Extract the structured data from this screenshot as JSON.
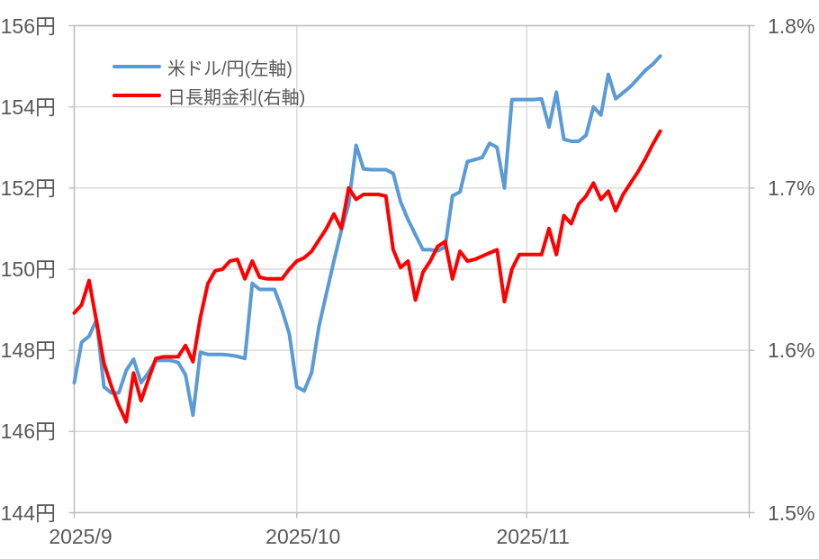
{
  "chart_data": {
    "type": "line",
    "title": "",
    "x": [
      "9/1",
      "9/2",
      "9/3",
      "9/4",
      "9/5",
      "9/6",
      "9/7",
      "9/8",
      "9/9",
      "9/10",
      "9/11",
      "9/12",
      "9/13",
      "9/14",
      "9/15",
      "9/16",
      "9/17",
      "9/18",
      "9/19",
      "9/20",
      "9/21",
      "9/22",
      "9/23",
      "9/24",
      "9/25",
      "9/26",
      "9/27",
      "9/28",
      "9/29",
      "9/30",
      "10/1",
      "10/2",
      "10/3",
      "10/4",
      "10/5",
      "10/6",
      "10/7",
      "10/8",
      "10/9",
      "10/10",
      "10/11",
      "10/12",
      "10/13",
      "10/14",
      "10/15",
      "10/16",
      "10/17",
      "10/18",
      "10/19",
      "10/20",
      "10/21",
      "10/22",
      "10/23",
      "10/24",
      "10/25",
      "10/26",
      "10/27",
      "10/28",
      "10/29",
      "10/30",
      "10/31",
      "11/1",
      "11/2",
      "11/3",
      "11/4",
      "11/5",
      "11/6",
      "11/7",
      "11/8",
      "11/9",
      "11/10",
      "11/11",
      "11/12",
      "11/13",
      "11/14",
      "11/15",
      "11/16",
      "11/17",
      "11/18",
      "11/19"
    ],
    "series": [
      {
        "name": "米ドル/円(左軸)",
        "axis": "left",
        "color": "#5B9BD5",
        "values": [
          147.2,
          148.2,
          148.35,
          148.75,
          147.1,
          146.95,
          146.95,
          147.5,
          147.78,
          147.2,
          147.45,
          147.75,
          147.75,
          147.75,
          147.7,
          147.4,
          146.4,
          147.95,
          147.9,
          147.9,
          147.9,
          147.88,
          147.85,
          147.8,
          149.65,
          149.5,
          149.5,
          149.5,
          149.0,
          148.4,
          147.1,
          147.0,
          147.45,
          148.6,
          149.4,
          150.2,
          150.95,
          151.6,
          153.05,
          152.47,
          152.45,
          152.45,
          152.45,
          152.36,
          151.66,
          151.22,
          150.85,
          150.48,
          150.48,
          150.45,
          150.55,
          151.81,
          151.9,
          152.65,
          152.7,
          152.75,
          153.1,
          153.0,
          152.0,
          154.18,
          154.18,
          154.18,
          154.18,
          154.2,
          153.5,
          154.36,
          153.2,
          153.15,
          153.15,
          153.3,
          154.0,
          153.8,
          154.8,
          154.2,
          154.35,
          154.5,
          154.7,
          154.9,
          155.05,
          155.25
        ]
      },
      {
        "name": "日長期金利(右軸)",
        "axis": "right",
        "color": "#FF0000",
        "values": [
          1.623,
          1.628,
          1.643,
          1.618,
          1.592,
          1.578,
          1.566,
          1.556,
          1.586,
          1.569,
          1.582,
          1.595,
          1.596,
          1.596,
          1.596,
          1.603,
          1.593,
          1.62,
          1.641,
          1.649,
          1.65,
          1.655,
          1.656,
          1.644,
          1.655,
          1.645,
          1.644,
          1.644,
          1.644,
          1.65,
          1.655,
          1.657,
          1.661,
          1.668,
          1.675,
          1.684,
          1.675,
          1.7,
          1.693,
          1.696,
          1.696,
          1.696,
          1.695,
          1.662,
          1.651,
          1.655,
          1.631,
          1.648,
          1.655,
          1.664,
          1.667,
          1.644,
          1.661,
          1.655,
          1.656,
          1.658,
          1.66,
          1.662,
          1.63,
          1.65,
          1.659,
          1.659,
          1.659,
          1.659,
          1.675,
          1.659,
          1.683,
          1.678,
          1.69,
          1.695,
          1.703,
          1.693,
          1.698,
          1.686,
          1.696,
          1.703,
          1.71,
          1.718,
          1.727,
          1.735
        ]
      }
    ],
    "left_axis": {
      "unit": "円",
      "min": 144,
      "max": 156,
      "tick_step": 2,
      "tick_labels": [
        "156円",
        "154円",
        "152円",
        "150円",
        "148円",
        "146円",
        "144円"
      ]
    },
    "right_axis": {
      "unit": "%",
      "min": 1.5,
      "max": 1.8,
      "tick_step": 0.1,
      "tick_labels": [
        "1.8%",
        "1.7%",
        "1.6%",
        "1.5%"
      ]
    },
    "x_axis": {
      "tick_labels": [
        "2025/9",
        "2025/10",
        "2025/11"
      ],
      "start_date": "2025/9/1",
      "end_date": "2025/12/1"
    },
    "grid": true,
    "legend_position": "top-left-inside"
  },
  "colors": {
    "background": "#FFFFFF",
    "gridline": "#D9D9D9",
    "plot_border": "#BFBFBF",
    "tick": "#BFBFBF",
    "text": "#595959",
    "series_usdjpy": "#5B9BD5",
    "series_jgb": "#FF0000"
  }
}
